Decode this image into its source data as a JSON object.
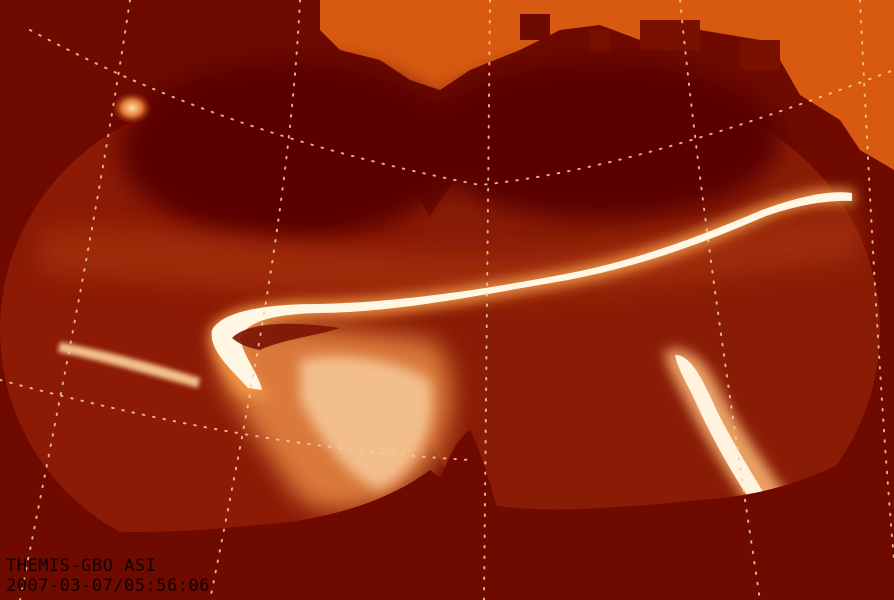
{
  "image": {
    "content": "auroral mosaic"
  },
  "caption": {
    "line1": "THEMIS-GBO ASI",
    "line2": "2007-03-07/05:56:06"
  },
  "colors": {
    "background": "#6e0a00",
    "sky_top_right": "#d85a10",
    "dark_regions": "#5a0600",
    "mid_red": "#9e2a0a",
    "aurora_core": "#fff4d8",
    "aurora_glow": "#f29a4a",
    "grid_dots": "#f4d0a0",
    "caption_text": "#140000"
  }
}
